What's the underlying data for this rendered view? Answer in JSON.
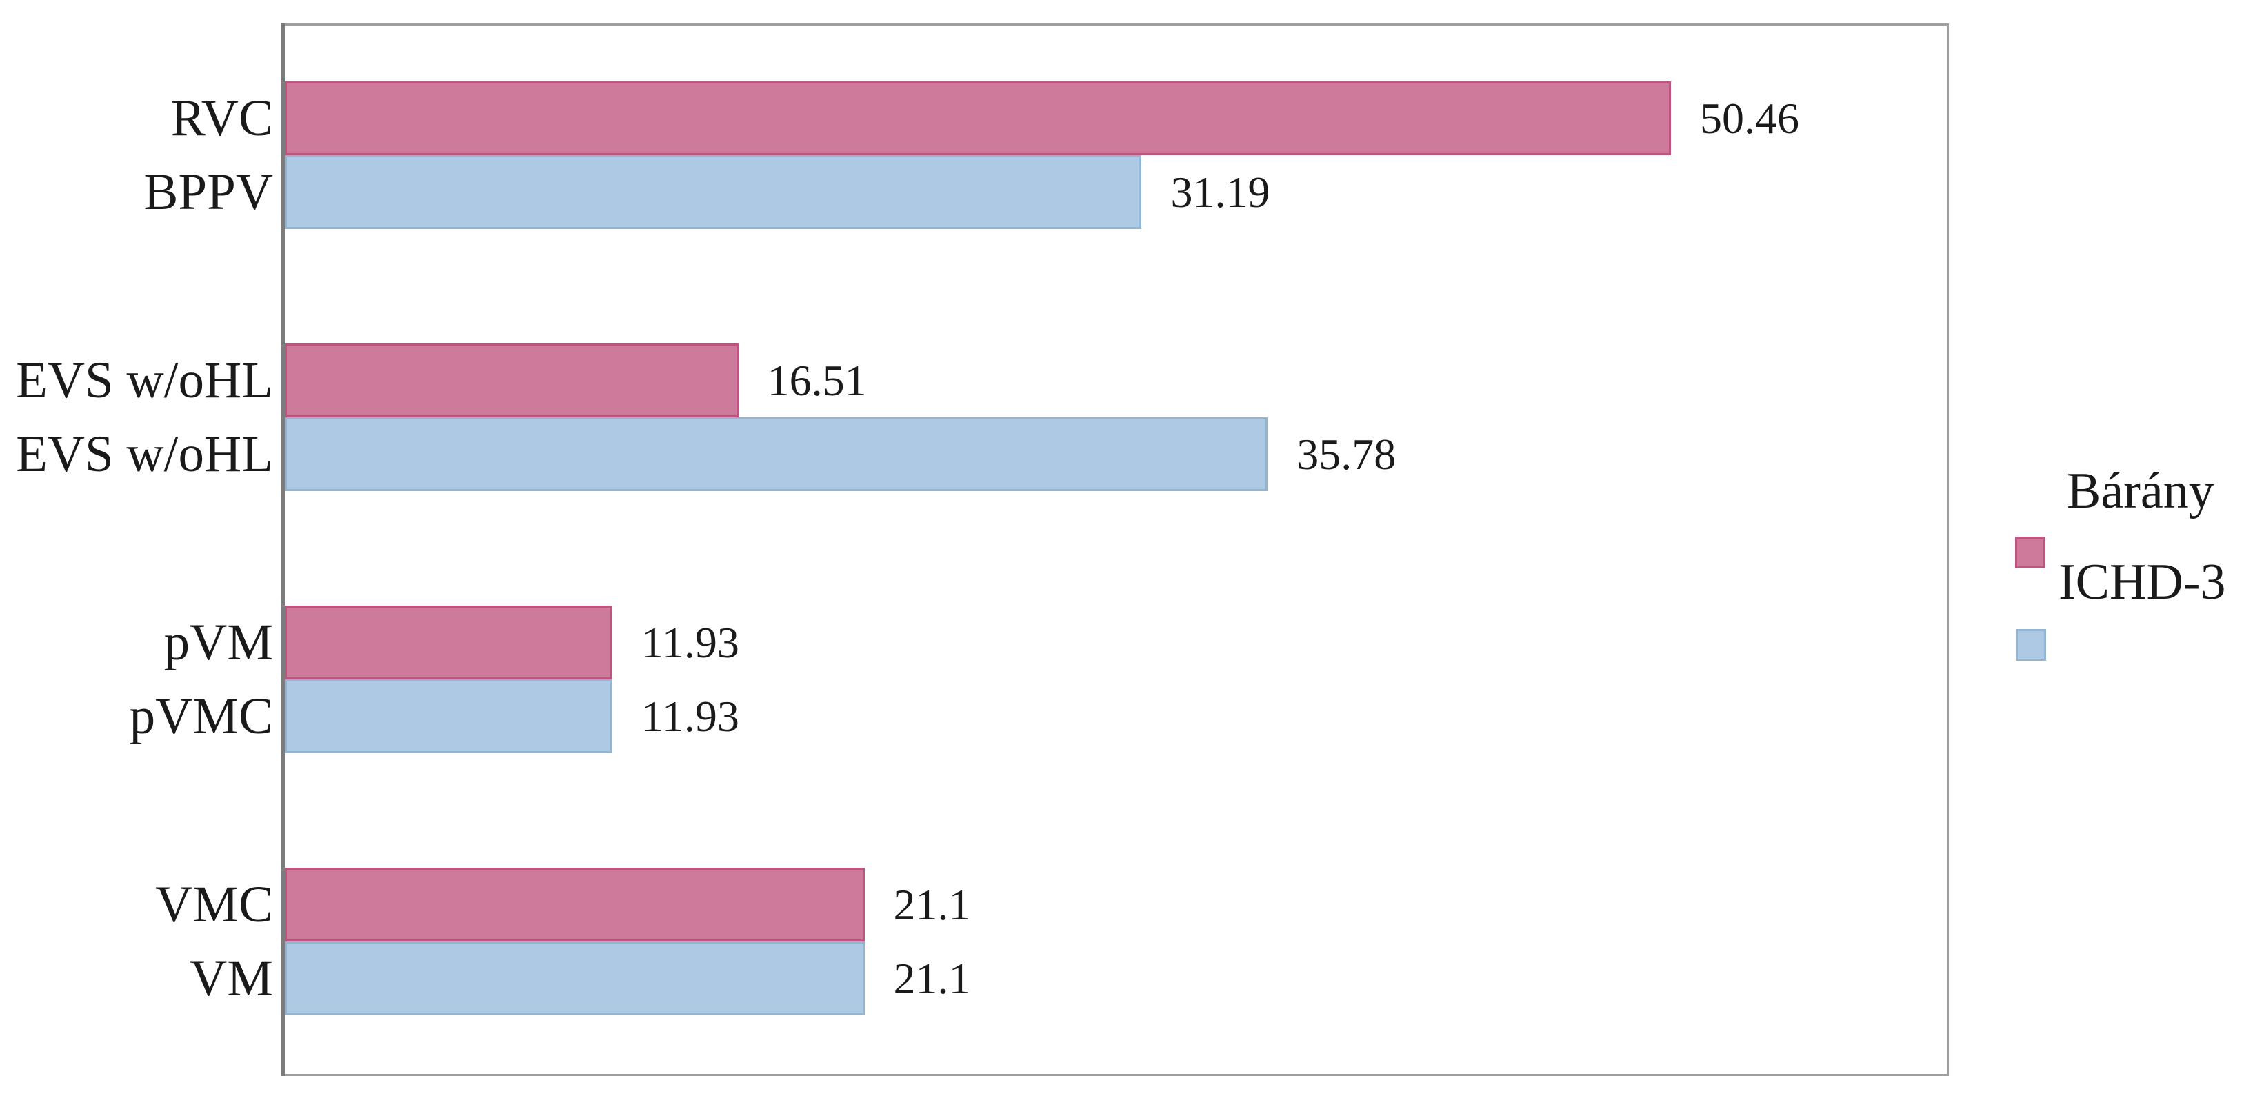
{
  "chart_data": {
    "type": "bar",
    "orientation": "horizontal",
    "title": "",
    "xlabel": "",
    "ylabel": "",
    "xlim": [
      0,
      60.5
    ],
    "grid": false,
    "axis_tick_labels_shown": false,
    "background": "#ffffff",
    "plot_border_color": "#9e9e9e",
    "axis_line_color": "#7c7c7c",
    "text_color": "#1a1a1a",
    "series_colors": {
      "ICHD-3": "#ce7b9b",
      "Bárány": "#aec9e3"
    },
    "series_border_colors": {
      "ICHD-3": "#bc5680",
      "Bárány": "#93b5d4"
    },
    "rows": [
      {
        "category": "RVC",
        "series": "ICHD-3",
        "value": 50.46,
        "value_label": "50.46"
      },
      {
        "category": "BPPV",
        "series": "Bárány",
        "value": 31.19,
        "value_label": "31.19"
      },
      {
        "category": "EVS w/oHL",
        "series": "ICHD-3",
        "value": 16.51,
        "value_label": "16.51"
      },
      {
        "category": "EVS w/oHL",
        "series": "Bárány",
        "value": 35.78,
        "value_label": "35.78"
      },
      {
        "category": "pVM",
        "series": "ICHD-3",
        "value": 11.93,
        "value_label": "11.93"
      },
      {
        "category": "pVMC",
        "series": "Bárány",
        "value": 11.93,
        "value_label": "11.93"
      },
      {
        "category": "VMC",
        "series": "ICHD-3",
        "value": 21.1,
        "value_label": "21.1"
      },
      {
        "category": "VM",
        "series": "Bárány",
        "value": 21.1,
        "value_label": "21.1"
      }
    ],
    "legend": {
      "position": "right",
      "lines": [
        {
          "label": "Bárány",
          "swatch": null
        },
        {
          "label": "ICHD-3",
          "swatch": "ICHD-3"
        },
        {
          "label": "",
          "swatch": "Bárány"
        }
      ]
    }
  }
}
